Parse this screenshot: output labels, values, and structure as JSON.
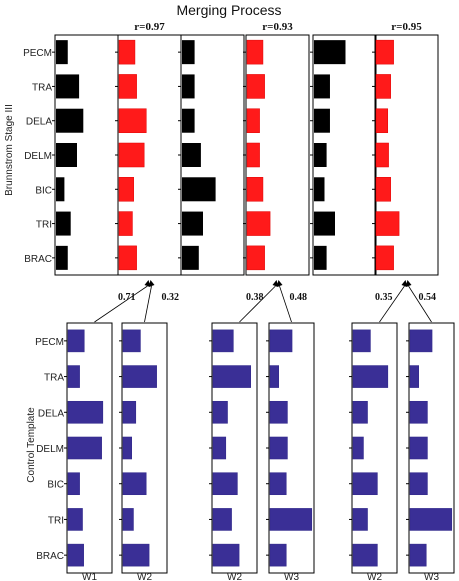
{
  "title": "Merging Process",
  "top_ylabel": "Brunnstrom Stage III",
  "bottom_ylabel": "Control Template",
  "muscles": [
    "PECM",
    "TRA",
    "DELA",
    "DELM",
    "BIC",
    "TRI",
    "BRAC"
  ],
  "colors": {
    "stroke_black": "#000000",
    "stroke_red": "#e00000",
    "stroke_blue": "#332b8c"
  },
  "chart_data": [
    {
      "type": "bar",
      "orientation": "horizontal",
      "group": "Brunnstrom Stage III",
      "categories": [
        "PECM",
        "TRA",
        "DELA",
        "DELM",
        "BIC",
        "TRI",
        "BRAC"
      ],
      "pairs": [
        {
          "r_label": "r=0.97",
          "black": [
            0.28,
            0.55,
            0.65,
            0.5,
            0.2,
            0.35,
            0.28
          ],
          "red": [
            0.38,
            0.42,
            0.65,
            0.6,
            0.35,
            0.32,
            0.42
          ]
        },
        {
          "r_label": "r=0.93",
          "black": [
            0.3,
            0.3,
            0.3,
            0.45,
            0.8,
            0.5,
            0.4
          ],
          "red": [
            0.38,
            0.42,
            0.3,
            0.3,
            0.38,
            0.55,
            0.42
          ]
        },
        {
          "r_label": "r=0.95",
          "black": [
            0.75,
            0.38,
            0.38,
            0.3,
            0.25,
            0.5,
            0.3
          ],
          "red": [
            0.42,
            0.35,
            0.28,
            0.3,
            0.35,
            0.55,
            0.42
          ]
        }
      ]
    },
    {
      "type": "bar",
      "orientation": "horizontal",
      "group": "Control Template",
      "categories": [
        "PECM",
        "TRA",
        "DELA",
        "DELM",
        "BIC",
        "TRI",
        "BRAC"
      ],
      "panels": [
        {
          "label": "W1",
          "values": [
            0.28,
            0.2,
            0.6,
            0.58,
            0.2,
            0.25,
            0.27
          ]
        },
        {
          "label": "W2",
          "values": [
            0.3,
            0.58,
            0.22,
            0.15,
            0.4,
            0.18,
            0.45
          ]
        },
        {
          "label": "W2",
          "values": [
            0.35,
            0.65,
            0.25,
            0.22,
            0.42,
            0.32,
            0.45
          ]
        },
        {
          "label": "W3",
          "values": [
            0.38,
            0.15,
            0.3,
            0.3,
            0.28,
            0.72,
            0.28
          ]
        },
        {
          "label": "W2",
          "values": [
            0.3,
            0.6,
            0.25,
            0.18,
            0.42,
            0.25,
            0.42
          ]
        },
        {
          "label": "W3",
          "values": [
            0.38,
            0.15,
            0.3,
            0.3,
            0.3,
            0.72,
            0.28
          ]
        }
      ],
      "coefficients": [
        "0.71",
        "0.32",
        "0.38",
        "0.48",
        "0.35",
        "0.54"
      ]
    }
  ]
}
